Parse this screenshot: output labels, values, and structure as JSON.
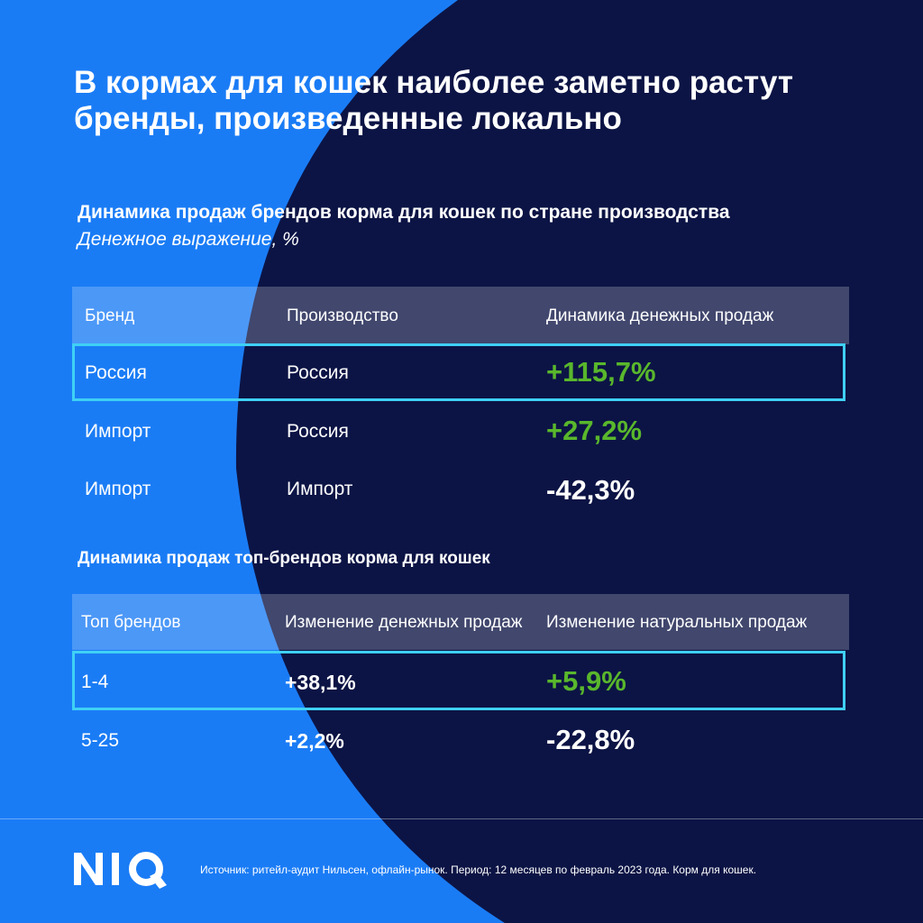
{
  "title": "В кормах для кошек наиболее заметно растут бренды, произведенные локально",
  "chart_data": [
    {
      "type": "table",
      "title": "Динамика продаж брендов корма для кошек по стране производства",
      "subtitle": "Денежное выражение, %",
      "columns": [
        "Бренд",
        "Производство",
        "Динамика денежных продаж"
      ],
      "rows": [
        {
          "brand": "Россия",
          "production": "Россия",
          "value": "+115,7%",
          "highlighted": true
        },
        {
          "brand": "Импорт",
          "production": "Россия",
          "value": "+27,2%",
          "highlighted": false
        },
        {
          "brand": "Импорт",
          "production": "Импорт",
          "value": "-42,3%",
          "highlighted": false
        }
      ]
    },
    {
      "type": "table",
      "title": "Динамика продаж топ-брендов корма для кошек",
      "columns": [
        "Топ брендов",
        "Изменение денежных продаж",
        "Изменение натуральных продаж"
      ],
      "rows": [
        {
          "top": "1-4",
          "money": "+38,1%",
          "volume": "+5,9%",
          "highlighted": true
        },
        {
          "top": "5-25",
          "money": "+2,2%",
          "volume": "-22,8%",
          "highlighted": false
        }
      ]
    }
  ],
  "footer": {
    "logo": "NIQ",
    "source": "Источник: ритейл-аудит Нильсен, офлайн-рынок. Период: 12 месяцев по февраль 2023 года. Корм для кошек."
  },
  "colors": {
    "background_blue": "#1a7cf5",
    "background_navy": "#0c1445",
    "positive_green": "#59b72c",
    "highlight_cyan": "#3fd0f5"
  }
}
